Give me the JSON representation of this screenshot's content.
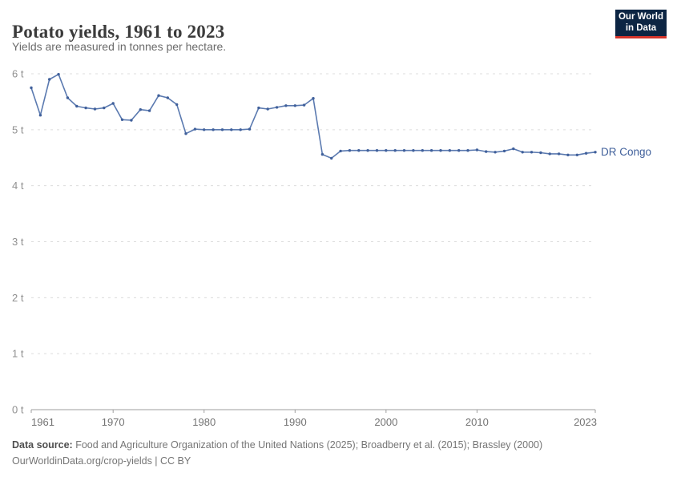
{
  "header": {
    "title": "Potato yields, 1961 to 2023",
    "subtitle": "Yields are measured in tonnes per hectare."
  },
  "logo": {
    "line1": "Our World",
    "line2": "in Data",
    "bg_color": "#0c2543",
    "accent_color": "#d3352b"
  },
  "chart_data": {
    "type": "line",
    "title": "Potato yields, 1961 to 2023",
    "xlabel": "",
    "ylabel": "tonnes per hectare",
    "xlim": [
      1961,
      2023
    ],
    "ylim": [
      0,
      6
    ],
    "x_ticks": [
      1961,
      1970,
      1980,
      1990,
      2000,
      2010,
      2023
    ],
    "y_ticks": [
      0,
      1,
      2,
      3,
      4,
      5,
      6
    ],
    "y_tick_suffix": " t",
    "grid": "horizontal-dashed",
    "legend_position": "end-of-line-label",
    "series": [
      {
        "name": "DR Congo",
        "line_color": "#5b7ab0",
        "marker_color": "#40609b",
        "label_color": "#40609b",
        "x": [
          1961,
          1962,
          1963,
          1964,
          1965,
          1966,
          1967,
          1968,
          1969,
          1970,
          1971,
          1972,
          1973,
          1974,
          1975,
          1976,
          1977,
          1978,
          1979,
          1980,
          1981,
          1982,
          1983,
          1984,
          1985,
          1986,
          1987,
          1988,
          1989,
          1990,
          1991,
          1992,
          1993,
          1994,
          1995,
          1996,
          1997,
          1998,
          1999,
          2000,
          2001,
          2002,
          2003,
          2004,
          2005,
          2006,
          2007,
          2008,
          2009,
          2010,
          2011,
          2012,
          2013,
          2014,
          2015,
          2016,
          2017,
          2018,
          2019,
          2020,
          2021,
          2022,
          2023
        ],
        "values": [
          5.75,
          5.26,
          5.9,
          5.99,
          5.57,
          5.42,
          5.39,
          5.37,
          5.39,
          5.47,
          5.18,
          5.17,
          5.36,
          5.34,
          5.61,
          5.57,
          5.45,
          4.93,
          5.01,
          5.0,
          5.0,
          5.0,
          5.0,
          5.0,
          5.01,
          5.39,
          5.37,
          5.4,
          5.43,
          5.43,
          5.44,
          5.56,
          4.56,
          4.49,
          4.62,
          4.63,
          4.63,
          4.63,
          4.63,
          4.63,
          4.63,
          4.63,
          4.63,
          4.63,
          4.63,
          4.63,
          4.63,
          4.63,
          4.63,
          4.64,
          4.61,
          4.6,
          4.62,
          4.66,
          4.6,
          4.6,
          4.59,
          4.57,
          4.57,
          4.55,
          4.55,
          4.58,
          4.6
        ]
      }
    ],
    "style": {
      "grid_color": "#dcdcdc",
      "axis_color": "#9e9e9e",
      "y_label_color": "#909090",
      "x_label_color": "#737373"
    }
  },
  "footer": {
    "source_label": "Data source:",
    "source_text": " Food and Agriculture Organization of the United Nations (2025); Broadberry et al. (2015); Brassley (2000)",
    "note": "OurWorldinData.org/crop-yields | CC BY"
  }
}
